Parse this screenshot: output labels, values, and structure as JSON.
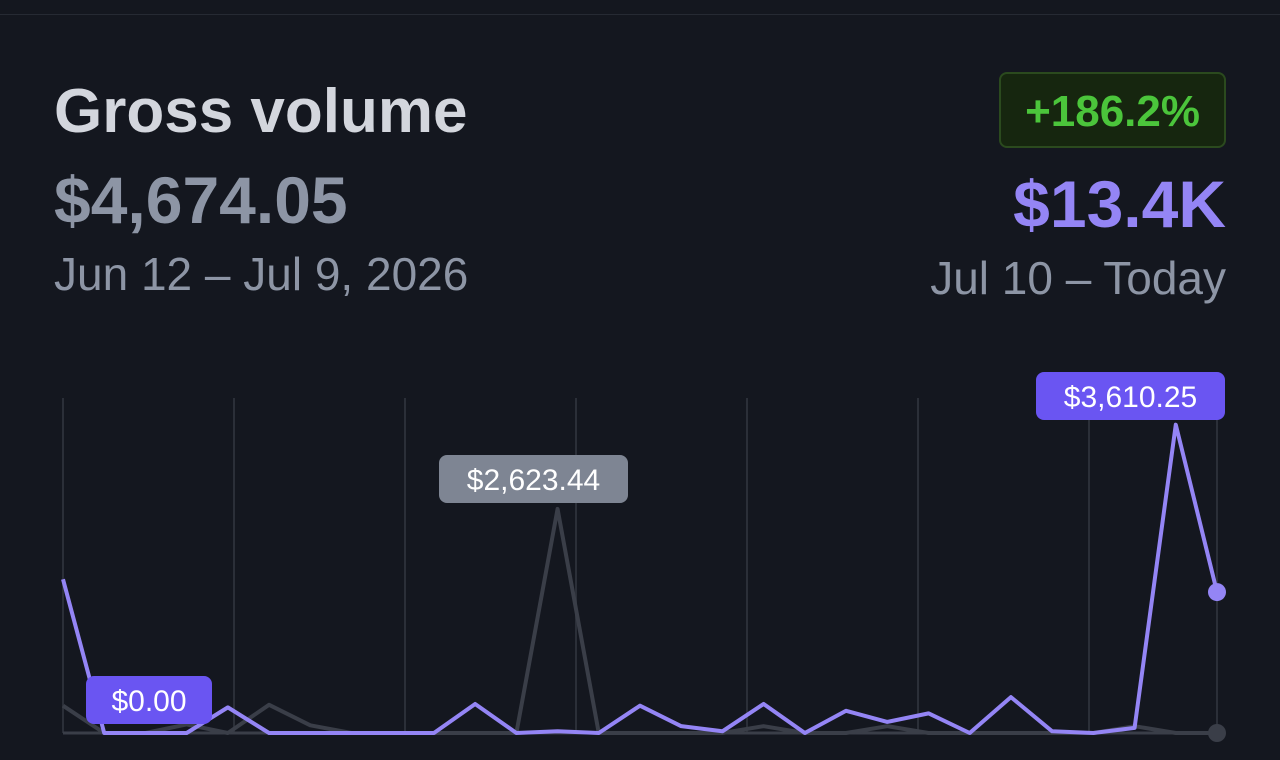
{
  "header": {
    "title": "Gross volume",
    "previous_amount": "$4,674.05",
    "previous_range": "Jun 12 – Jul 9, 2026",
    "change": "+186.2%",
    "current_amount": "$13.4K",
    "current_range": "Jul 10 – Today"
  },
  "colors": {
    "background": "#14171f",
    "current_series": "#9485f5",
    "previous_series": "#3a3e48",
    "positive_change": "#4bc53b",
    "tooltip_current": "#6a55f2",
    "tooltip_previous": "#7e8593"
  },
  "chart_data": {
    "type": "line",
    "ylim": [
      0,
      4000
    ],
    "grid": "vertical",
    "series": [
      {
        "values": [
          1800,
          0,
          0,
          0,
          300,
          0,
          0,
          0,
          0,
          0,
          340,
          0,
          20,
          0,
          320,
          80,
          20,
          340,
          0,
          260,
          130,
          230,
          0,
          420,
          20,
          0,
          60,
          3610.25,
          1650
        ]
      },
      {
        "values": [
          320,
          0,
          0,
          100,
          0,
          330,
          90,
          0,
          0,
          0,
          0,
          0,
          2623.44,
          0,
          0,
          0,
          0,
          80,
          0,
          0,
          80,
          0,
          0,
          0,
          0,
          0,
          80,
          0,
          0
        ]
      }
    ],
    "annotations": [
      {
        "label": "$0.00",
        "series": 0,
        "index": 2
      },
      {
        "label": "$2,623.44",
        "series": 1,
        "index": 12
      },
      {
        "label": "$3,610.25",
        "series": 0,
        "index": 27
      }
    ]
  }
}
